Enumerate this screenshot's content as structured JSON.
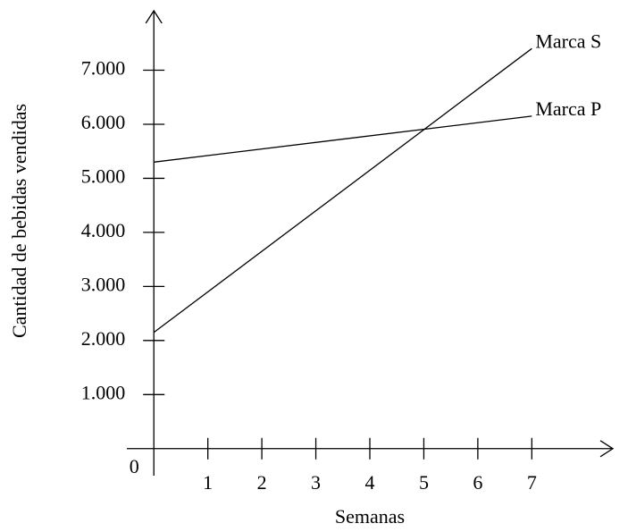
{
  "chart_data": {
    "type": "line",
    "y_label": "Cantidad de bebidas vendidas",
    "x_label": "Semanas",
    "x": [
      0,
      7
    ],
    "series": [
      {
        "name": "Marca S",
        "color": "#000000",
        "values": [
          2150,
          7400
        ]
      },
      {
        "name": "Marca P",
        "color": "#000000",
        "values": [
          5300,
          6150
        ]
      }
    ],
    "xlim": [
      -0.5,
      8.5
    ],
    "ylim": [
      -500,
      8100
    ],
    "xticks": [
      0,
      1,
      2,
      3,
      4,
      5,
      6,
      7
    ],
    "yticks": [
      {
        "value": 1000,
        "label": "1.000"
      },
      {
        "value": 2000,
        "label": "2.000"
      },
      {
        "value": 3000,
        "label": "3.000"
      },
      {
        "value": 4000,
        "label": "4.000"
      },
      {
        "value": 5000,
        "label": "5.000"
      },
      {
        "value": 6000,
        "label": "6.000"
      },
      {
        "value": 7000,
        "label": "7.000"
      }
    ]
  }
}
